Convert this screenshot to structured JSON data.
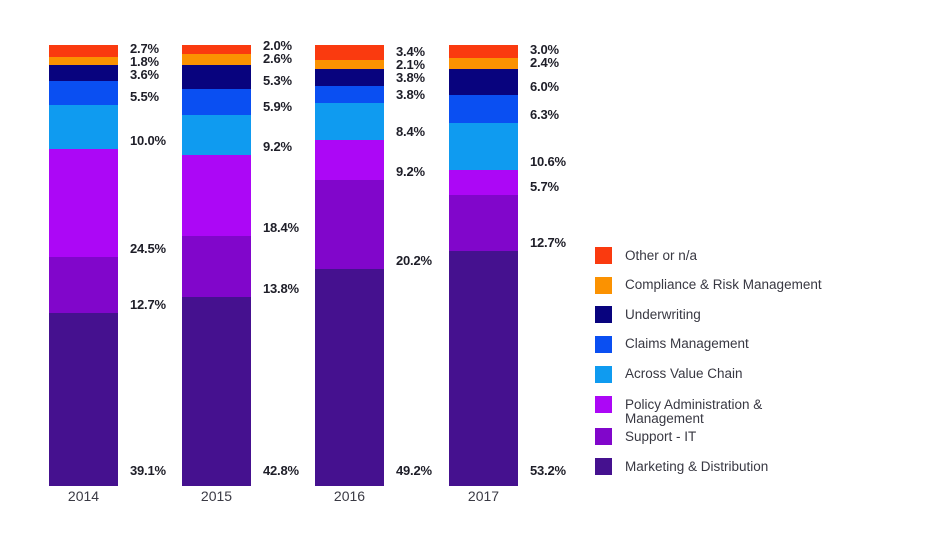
{
  "chart_data": {
    "type": "bar",
    "stacked": true,
    "orientation": "vertical",
    "title": "",
    "categories": [
      "2014",
      "2015",
      "2016",
      "2017"
    ],
    "series": [
      {
        "name": "Other or n/a",
        "color": "#FA3A0F",
        "values": [
          2.7,
          2.0,
          3.4,
          3.0
        ]
      },
      {
        "name": "Compliance & Risk Management",
        "color": "#FB9201",
        "values": [
          1.8,
          2.6,
          2.1,
          2.4
        ]
      },
      {
        "name": "Underwriting",
        "color": "#08037E",
        "values": [
          3.6,
          5.3,
          3.8,
          6.0
        ]
      },
      {
        "name": "Claims Management",
        "color": "#0A4FF2",
        "values": [
          5.5,
          5.9,
          3.8,
          6.3
        ]
      },
      {
        "name": "Across Value Chain",
        "color": "#0F9BF0",
        "values": [
          10.0,
          9.2,
          8.4,
          10.6
        ]
      },
      {
        "name": "Policy Administration & Management",
        "color": "#AC07F6",
        "values": [
          24.5,
          18.4,
          9.2,
          5.7
        ]
      },
      {
        "name": "Support - IT",
        "color": "#8106CB",
        "values": [
          12.7,
          13.8,
          20.2,
          12.7
        ]
      },
      {
        "name": "Marketing & Distribution",
        "color": "#45118F",
        "values": [
          39.1,
          42.8,
          49.2,
          53.2
        ]
      }
    ],
    "value_label_format": "one-decimal-percent",
    "value_labels_visible": true,
    "ylim": [
      0,
      100
    ],
    "grid": false,
    "y_axis_visible": false,
    "legend_position": "right",
    "x_tick_labels": [
      "2014",
      "2015",
      "2016",
      "2017"
    ]
  },
  "colors": {
    "background": "#ffffff",
    "value_label_text": "#1E1E28",
    "x_tick_text": "#3A3A44",
    "legend_text": "#383842"
  }
}
